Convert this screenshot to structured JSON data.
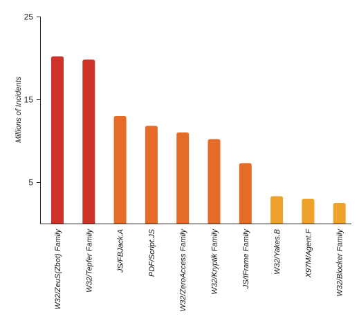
{
  "chart_data": {
    "type": "bar",
    "title": "",
    "xlabel": "",
    "ylabel": "Millions of Incidents",
    "ylim": [
      0,
      25
    ],
    "yticks": [
      5,
      15,
      25
    ],
    "grid": false,
    "categories": [
      "W32/ZeuS(Zbot) Family",
      "W32/Tepfer Family",
      "JS/FBJack.A",
      "PDF/Script.JS",
      "W32/ZeroAccess Family",
      "W32/Kryptik Family",
      "JS/IFrame Family",
      "W32/Yakes.B",
      "X97M/Agent.F",
      "W32/Blocker Family"
    ],
    "values": [
      20.2,
      19.8,
      13.0,
      11.8,
      11.0,
      10.2,
      7.3,
      3.3,
      3.0,
      2.5
    ],
    "colors": [
      "#cd3328",
      "#cd3328",
      "#e56b28",
      "#e56b28",
      "#e56b28",
      "#e56b28",
      "#e56b28",
      "#eea22c",
      "#eea22c",
      "#eea22c"
    ]
  }
}
